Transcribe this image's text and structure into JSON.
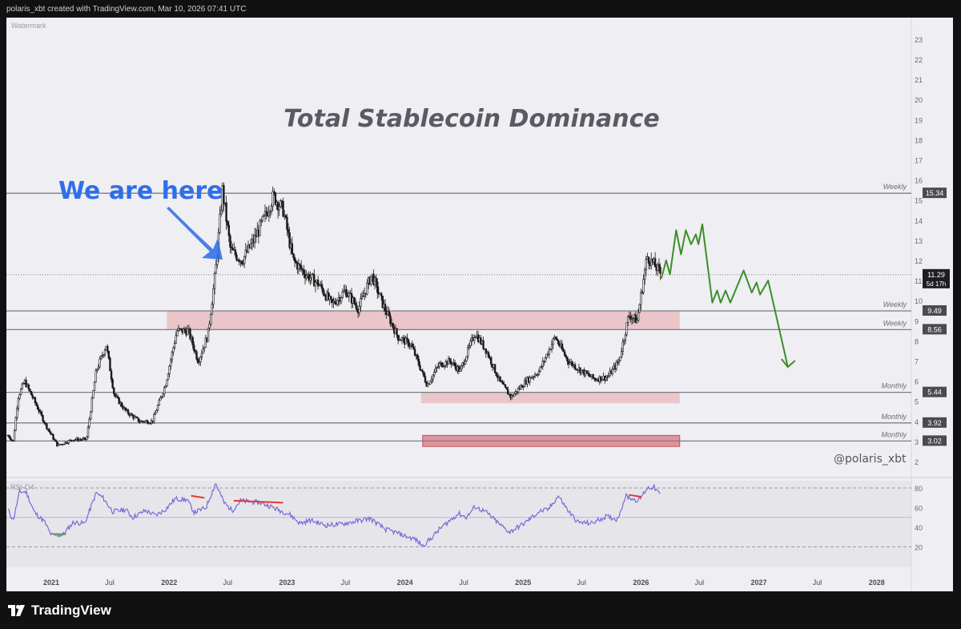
{
  "header": {
    "attribution": "polaris_xbt created with TradingView.com, Mar 10, 2026 07:41 UTC"
  },
  "watermark": "Watermark",
  "title": "Total Stablecoin Dominance",
  "callout": "We are here",
  "author_tag": "@polaris_xbt",
  "footer": {
    "brand": "TradingView",
    "logo_icon": "tradingview-logo-icon"
  },
  "colors": {
    "panel_bg": "#efeef2",
    "candle": "#1a1a1a",
    "zone_fill": "#e8b4b8",
    "zone_fill_strong": "#d9747f",
    "projection": "#3b8f2a",
    "callout": "#2f6fe8",
    "rsi_line": "#7b68d6",
    "divergence_bear": "#e53935",
    "divergence_bull": "#43a047"
  },
  "chart_data": [
    {
      "type": "candlestick",
      "title": "Total Stablecoin Dominance",
      "y_axis": {
        "ticks": [
          2,
          3,
          4,
          5,
          6,
          7,
          8,
          9,
          10,
          11,
          12,
          13,
          14,
          15,
          16,
          17,
          18,
          19,
          20,
          21,
          22,
          23
        ],
        "range": [
          1.5,
          23.5
        ]
      },
      "x_axis": {
        "ticks": [
          "2021",
          "Jul",
          "2022",
          "Jul",
          "2023",
          "Jul",
          "2024",
          "Jul",
          "2025",
          "Jul",
          "2026",
          "Jul",
          "2027",
          "Jul",
          "2028"
        ],
        "tick_dates": [
          "2021-01-01",
          "2021-07-01",
          "2022-01-01",
          "2022-07-01",
          "2023-01-01",
          "2023-07-01",
          "2024-01-01",
          "2024-07-01",
          "2025-01-01",
          "2025-07-01",
          "2026-01-01",
          "2026-07-01",
          "2027-01-01",
          "2027-07-01",
          "2028-01-01"
        ],
        "range": [
          "2020-08-15",
          "2028-06-01"
        ]
      },
      "price_path": [
        [
          "2020-08-20",
          3.3
        ],
        [
          "2020-09-05",
          3.0
        ],
        [
          "2020-09-20",
          5.2
        ],
        [
          "2020-10-10",
          6.0
        ],
        [
          "2020-11-10",
          5.0
        ],
        [
          "2020-12-15",
          3.8
        ],
        [
          "2021-01-20",
          2.8
        ],
        [
          "2021-03-10",
          3.1
        ],
        [
          "2021-04-20",
          3.1
        ],
        [
          "2021-05-20",
          6.5
        ],
        [
          "2021-06-20",
          7.8
        ],
        [
          "2021-07-15",
          5.3
        ],
        [
          "2021-08-20",
          4.5
        ],
        [
          "2021-10-01",
          4.0
        ],
        [
          "2021-11-10",
          4.0
        ],
        [
          "2021-12-20",
          5.8
        ],
        [
          "2022-01-25",
          8.5
        ],
        [
          "2022-03-01",
          8.5
        ],
        [
          "2022-04-01",
          7.0
        ],
        [
          "2022-05-01",
          8.3
        ],
        [
          "2022-05-25",
          11.5
        ],
        [
          "2022-06-15",
          15.5
        ],
        [
          "2022-07-10",
          12.5
        ],
        [
          "2022-08-15",
          12.0
        ],
        [
          "2022-09-20",
          13.0
        ],
        [
          "2022-10-20",
          14.0
        ],
        [
          "2022-11-20",
          15.2
        ],
        [
          "2022-12-20",
          14.5
        ],
        [
          "2023-01-20",
          12.0
        ],
        [
          "2023-03-01",
          11.3
        ],
        [
          "2023-04-10",
          10.8
        ],
        [
          "2023-05-20",
          9.8
        ],
        [
          "2023-07-01",
          10.5
        ],
        [
          "2023-08-10",
          9.6
        ],
        [
          "2023-09-20",
          11.3
        ],
        [
          "2023-10-25",
          9.8
        ],
        [
          "2023-12-10",
          8.2
        ],
        [
          "2024-01-20",
          7.8
        ],
        [
          "2024-03-10",
          5.8
        ],
        [
          "2024-04-15",
          6.8
        ],
        [
          "2024-05-20",
          7.0
        ],
        [
          "2024-06-20",
          6.5
        ],
        [
          "2024-08-05",
          8.4
        ],
        [
          "2024-09-10",
          7.5
        ],
        [
          "2024-10-20",
          6.0
        ],
        [
          "2024-11-25",
          5.2
        ],
        [
          "2025-01-10",
          6.0
        ],
        [
          "2025-02-20",
          6.5
        ],
        [
          "2025-04-10",
          8.2
        ],
        [
          "2025-05-20",
          7.0
        ],
        [
          "2025-07-01",
          6.5
        ],
        [
          "2025-08-10",
          6.1
        ],
        [
          "2025-09-20",
          6.2
        ],
        [
          "2025-10-25",
          7.0
        ],
        [
          "2025-11-25",
          9.3
        ],
        [
          "2025-12-20",
          9.0
        ],
        [
          "2026-01-20",
          12.2
        ],
        [
          "2026-02-10",
          11.8
        ],
        [
          "2026-03-05",
          11.3
        ]
      ],
      "last_price": {
        "value": 11.29,
        "countdown": "5d 17h"
      },
      "levels": [
        {
          "label": "Weekly",
          "value": 15.34
        },
        {
          "label": "Weekly",
          "value": 9.49
        },
        {
          "label": "Weekly",
          "value": 8.56
        },
        {
          "label": "Monthly",
          "value": 5.44
        },
        {
          "label": "Monthly",
          "value": 3.92
        },
        {
          "label": "Monthly",
          "value": 3.02
        }
      ],
      "zones": [
        {
          "from": "2021-12-25",
          "to": "2026-05-01",
          "low": 8.56,
          "high": 9.49,
          "style": "light"
        },
        {
          "from": "2024-02-20",
          "to": "2026-05-01",
          "low": 4.9,
          "high": 5.44,
          "style": "light"
        },
        {
          "from": "2024-02-25",
          "to": "2026-05-01",
          "low": 2.75,
          "high": 3.3,
          "style": "strong"
        }
      ],
      "projection": [
        [
          "2026-03-05",
          11.1
        ],
        [
          "2026-03-20",
          12.0
        ],
        [
          "2026-04-01",
          11.3
        ],
        [
          "2026-04-20",
          13.5
        ],
        [
          "2026-05-05",
          12.3
        ],
        [
          "2026-05-20",
          13.5
        ],
        [
          "2026-06-05",
          12.8
        ],
        [
          "2026-06-20",
          13.3
        ],
        [
          "2026-06-28",
          12.8
        ],
        [
          "2026-07-10",
          13.8
        ],
        [
          "2026-08-10",
          9.9
        ],
        [
          "2026-08-25",
          10.5
        ],
        [
          "2026-09-05",
          9.9
        ],
        [
          "2026-09-20",
          10.5
        ],
        [
          "2026-10-05",
          9.9
        ],
        [
          "2026-11-15",
          11.5
        ],
        [
          "2026-12-10",
          10.4
        ],
        [
          "2026-12-25",
          10.9
        ],
        [
          "2027-01-05",
          10.3
        ],
        [
          "2027-01-30",
          11.0
        ],
        [
          "2027-04-01",
          6.7
        ]
      ]
    },
    {
      "type": "line",
      "title": "RSI-D4",
      "y_axis": {
        "ticks": [
          20,
          40,
          60,
          80
        ],
        "range": [
          14,
          94
        ]
      },
      "reference_lines": [
        80,
        50,
        20
      ],
      "rsi_path": [
        [
          "2020-08-20",
          58
        ],
        [
          "2020-09-05",
          47
        ],
        [
          "2020-09-25",
          76
        ],
        [
          "2020-10-15",
          76
        ],
        [
          "2020-11-10",
          55
        ],
        [
          "2020-12-10",
          46
        ],
        [
          "2021-01-01",
          32
        ],
        [
          "2021-02-05",
          32
        ],
        [
          "2021-03-10",
          45
        ],
        [
          "2021-04-15",
          44
        ],
        [
          "2021-05-20",
          75
        ],
        [
          "2021-06-10",
          70
        ],
        [
          "2021-07-10",
          56
        ],
        [
          "2021-08-20",
          58
        ],
        [
          "2021-09-10",
          50
        ],
        [
          "2021-10-20",
          57
        ],
        [
          "2021-11-20",
          52
        ],
        [
          "2021-12-20",
          58
        ],
        [
          "2022-01-20",
          69
        ],
        [
          "2022-02-25",
          68
        ],
        [
          "2022-03-20",
          55
        ],
        [
          "2022-04-25",
          60
        ],
        [
          "2022-05-25",
          85
        ],
        [
          "2022-06-20",
          65
        ],
        [
          "2022-07-15",
          57
        ],
        [
          "2022-08-10",
          67
        ],
        [
          "2022-10-10",
          65
        ],
        [
          "2022-11-05",
          62
        ],
        [
          "2022-12-10",
          57
        ],
        [
          "2023-01-10",
          53
        ],
        [
          "2023-02-10",
          44
        ],
        [
          "2023-03-15",
          47
        ],
        [
          "2023-05-01",
          42
        ],
        [
          "2023-06-15",
          43
        ],
        [
          "2023-08-01",
          46
        ],
        [
          "2023-09-15",
          49
        ],
        [
          "2023-11-01",
          38
        ],
        [
          "2023-12-10",
          34
        ],
        [
          "2024-01-10",
          30
        ],
        [
          "2024-02-01",
          28
        ],
        [
          "2024-02-25",
          21
        ],
        [
          "2024-03-20",
          28
        ],
        [
          "2024-04-20",
          39
        ],
        [
          "2024-06-15",
          54
        ],
        [
          "2024-07-10",
          50
        ],
        [
          "2024-08-05",
          61
        ],
        [
          "2024-09-10",
          55
        ],
        [
          "2024-10-20",
          43
        ],
        [
          "2024-11-20",
          35
        ],
        [
          "2025-01-05",
          44
        ],
        [
          "2025-02-20",
          56
        ],
        [
          "2025-03-20",
          58
        ],
        [
          "2025-04-20",
          72
        ],
        [
          "2025-05-20",
          57
        ],
        [
          "2025-06-20",
          45
        ],
        [
          "2025-08-01",
          44
        ],
        [
          "2025-09-15",
          51
        ],
        [
          "2025-10-20",
          48
        ],
        [
          "2025-11-15",
          72
        ],
        [
          "2025-12-05",
          69
        ],
        [
          "2025-12-25",
          67
        ],
        [
          "2026-01-20",
          80
        ],
        [
          "2026-02-10",
          81
        ],
        [
          "2026-03-01",
          73
        ]
      ],
      "divergences": [
        {
          "kind": "bearish",
          "from": [
            "2022-03-10",
            72
          ],
          "to": [
            "2022-04-20",
            70
          ]
        },
        {
          "kind": "bearish",
          "from": [
            "2022-07-20",
            67
          ],
          "to": [
            "2022-12-20",
            65
          ]
        },
        {
          "kind": "bearish",
          "from": [
            "2025-11-25",
            73
          ],
          "to": [
            "2026-01-01",
            71
          ]
        },
        {
          "kind": "bullish",
          "from": [
            "2021-01-05",
            33
          ],
          "to": [
            "2021-02-15",
            33
          ]
        }
      ]
    }
  ]
}
